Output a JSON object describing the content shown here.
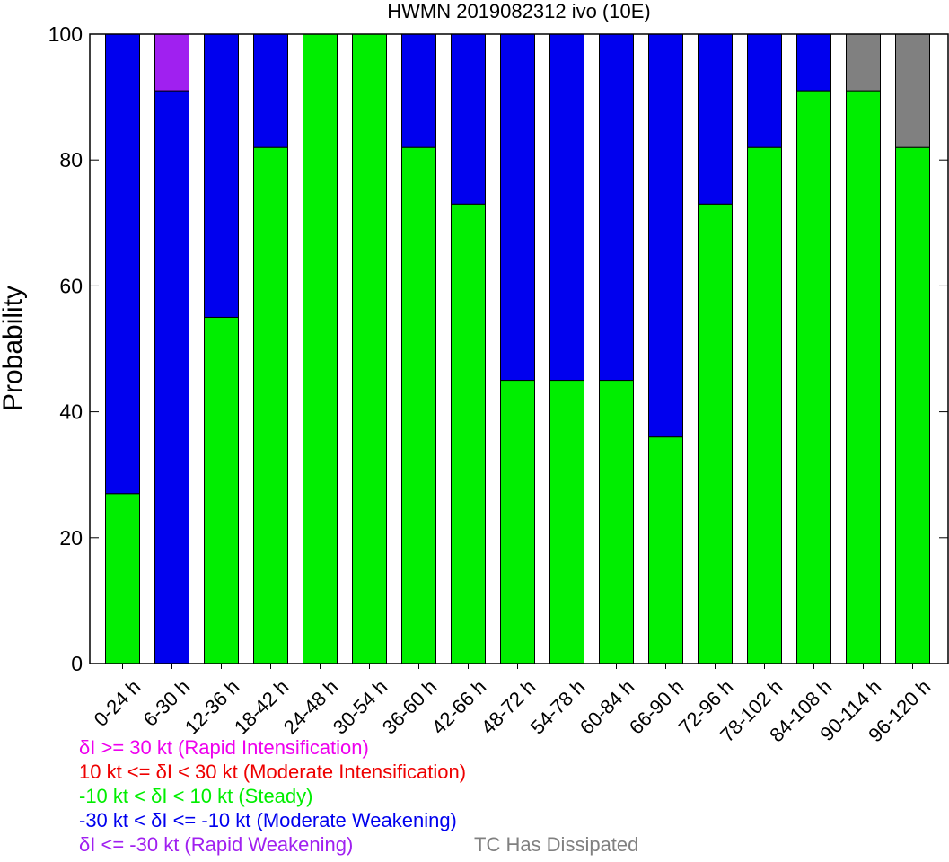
{
  "chart_data": {
    "type": "bar",
    "stacked": true,
    "title": "HWMN 2019082312 ivo (10E)",
    "xlabel": "",
    "ylabel": "Probability",
    "ylim": [
      0,
      100
    ],
    "yticks": [
      0,
      20,
      40,
      60,
      80,
      100
    ],
    "grid": false,
    "categories": [
      "0-24 h",
      "6-30 h",
      "12-36 h",
      "18-42 h",
      "24-48 h",
      "30-54 h",
      "36-60 h",
      "42-66 h",
      "48-72 h",
      "54-78 h",
      "60-84 h",
      "66-90 h",
      "72-96 h",
      "78-102 h",
      "84-108 h",
      "90-114 h",
      "96-120 h"
    ],
    "series": [
      {
        "key": "steady",
        "color": "#00ee00",
        "values": [
          27,
          0,
          55,
          82,
          100,
          100,
          82,
          73,
          45,
          45,
          45,
          36,
          73,
          82,
          91,
          91,
          82
        ]
      },
      {
        "key": "moderate_weakening",
        "color": "#0000ee",
        "values": [
          73,
          91,
          45,
          18,
          0,
          0,
          18,
          27,
          55,
          55,
          55,
          64,
          27,
          18,
          9,
          0,
          0
        ]
      },
      {
        "key": "rapid_weakening",
        "color": "#a020f0",
        "values": [
          0,
          9,
          0,
          0,
          0,
          0,
          0,
          0,
          0,
          0,
          0,
          0,
          0,
          0,
          0,
          0,
          0
        ]
      },
      {
        "key": "dissipated",
        "color": "#808080",
        "values": [
          0,
          0,
          0,
          0,
          0,
          0,
          0,
          0,
          0,
          0,
          0,
          0,
          0,
          0,
          0,
          9,
          18
        ]
      }
    ],
    "legend": {
      "placement": "bottom-left",
      "entries": [
        {
          "text": "δI >= 30 kt (Rapid Intensification)",
          "color": "#ee00ee"
        },
        {
          "text": "10 kt <= δI < 30 kt (Moderate Intensification)",
          "color": "#ee0000"
        },
        {
          "text": "-10 kt < δI < 10 kt (Steady)",
          "color": "#00ee00"
        },
        {
          "text": "-30 kt < δI <= -10 kt (Moderate Weakening)",
          "color": "#0000ee"
        },
        {
          "text": "δI <= -30 kt (Rapid Weakening)",
          "color": "#a020f0"
        },
        {
          "text": "TC Has Dissipated",
          "color": "#808080"
        }
      ]
    }
  }
}
